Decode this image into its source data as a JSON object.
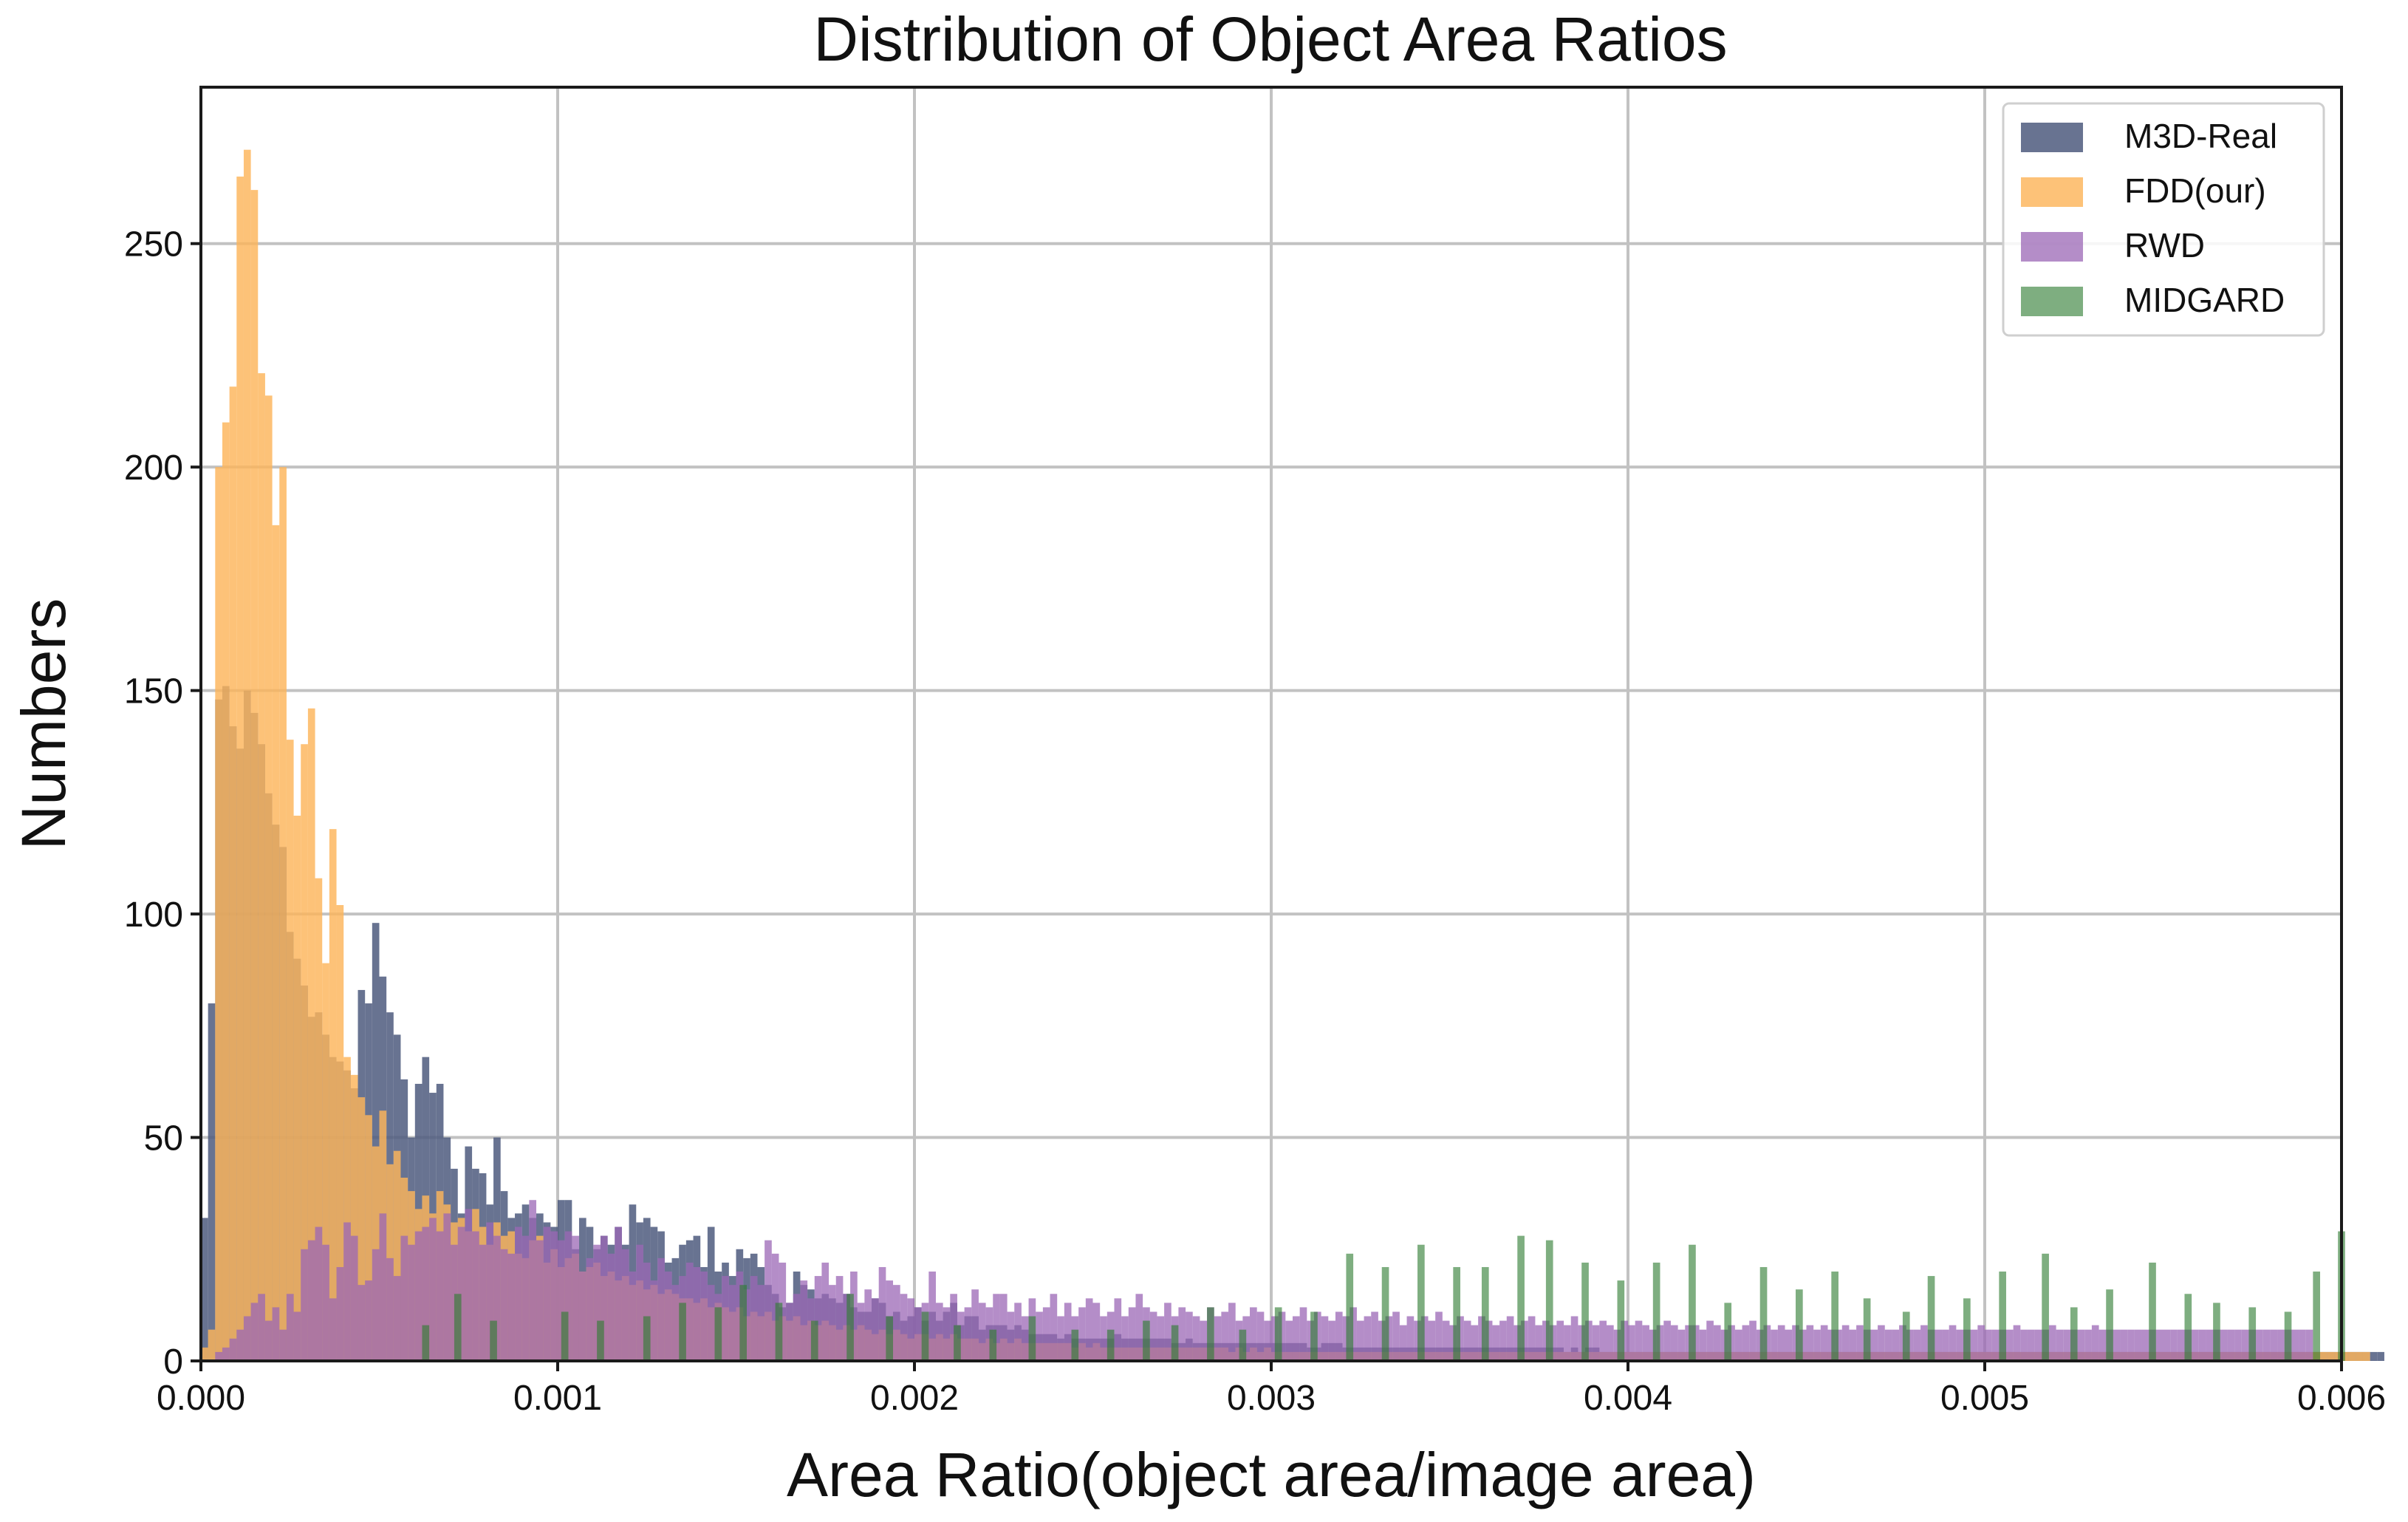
{
  "chart_data": {
    "type": "bar",
    "title": "Distribution of Object Area Ratios",
    "xlabel": "Area Ratio(object area/image area)",
    "ylabel": "Numbers",
    "xlim": [
      0,
      0.006
    ],
    "ylim": [
      0,
      285
    ],
    "xticks": [
      "0.000",
      "0.001",
      "0.002",
      "0.003",
      "0.004",
      "0.005",
      "0.006"
    ],
    "yticks": [
      "0",
      "50",
      "100",
      "150",
      "200",
      "250"
    ],
    "grid": true,
    "legend_position": "top-right",
    "bin_start": 0.0,
    "bin_width": 2e-05,
    "series": [
      {
        "name": "M3D-Real",
        "color": "#4e5a7e",
        "opacity": 0.85,
        "values": [
          32,
          80,
          148,
          151,
          142,
          137,
          150,
          145,
          138,
          127,
          120,
          115,
          96,
          90,
          84,
          77,
          78,
          73,
          68,
          67,
          65,
          61,
          83,
          80,
          98,
          86,
          78,
          73,
          63,
          50,
          62,
          68,
          60,
          62,
          50,
          43,
          33,
          48,
          43,
          42,
          35,
          50,
          38,
          32,
          33,
          35,
          32,
          33,
          31,
          30,
          36,
          36,
          25,
          32,
          30,
          25,
          28,
          26,
          30,
          26,
          35,
          31,
          32,
          30,
          29,
          22,
          23,
          26,
          27,
          28,
          21,
          30,
          20,
          22,
          19,
          25,
          23,
          24,
          21,
          17,
          15,
          12,
          13,
          20,
          17,
          16,
          14,
          15,
          14,
          13,
          15,
          12,
          11,
          11,
          14,
          13,
          10,
          11,
          9,
          10,
          12,
          9,
          11,
          9,
          11,
          13,
          8,
          10,
          10,
          7,
          8,
          8,
          8,
          7,
          8,
          7,
          6,
          6,
          6,
          6,
          5,
          6,
          5,
          5,
          5,
          5,
          5,
          5,
          6,
          5,
          5,
          5,
          5,
          5,
          5,
          5,
          4,
          4,
          5,
          4,
          4,
          4,
          4,
          4,
          4,
          4,
          4,
          4,
          4,
          4,
          4,
          4,
          4,
          4,
          4,
          3,
          3,
          4,
          4,
          4,
          3,
          3,
          3,
          3,
          3,
          3,
          3,
          3,
          3,
          3,
          3,
          3,
          3,
          3,
          3,
          3,
          3,
          3,
          3,
          3,
          3,
          3,
          3,
          3,
          3,
          3,
          3,
          3,
          3,
          3,
          3,
          2,
          3,
          2,
          3,
          3,
          2,
          2,
          2,
          2,
          2,
          2,
          2,
          2,
          2,
          2,
          2,
          2,
          2,
          2,
          2,
          2,
          2,
          2,
          2,
          2,
          2,
          2,
          2,
          2,
          2,
          2,
          2,
          2,
          2,
          2,
          2,
          2,
          2,
          2,
          2,
          2,
          2,
          2,
          2,
          2,
          2,
          2,
          2,
          2,
          2,
          2,
          2,
          2,
          2,
          2,
          2,
          2,
          2,
          2,
          2,
          2,
          2,
          2,
          2,
          2,
          2,
          2,
          2,
          2,
          2,
          2,
          2,
          2,
          2,
          2,
          2,
          2,
          2,
          2,
          2,
          2,
          2,
          2,
          2,
          2,
          2,
          2,
          2,
          2,
          2,
          2,
          2,
          2,
          2,
          2,
          2,
          2,
          2,
          2,
          2,
          2,
          2,
          2,
          2,
          2,
          2,
          2,
          2,
          2,
          2,
          2,
          2,
          2,
          2,
          2
        ]
      },
      {
        "name": "FDD(our)",
        "color": "#fcb55a",
        "opacity": 0.82,
        "values": [
          3,
          7,
          200,
          210,
          218,
          265,
          271,
          262,
          221,
          216,
          187,
          200,
          139,
          122,
          138,
          146,
          108,
          89,
          119,
          102,
          68,
          64,
          59,
          55,
          48,
          56,
          44,
          47,
          41,
          38,
          34,
          37,
          33,
          38,
          35,
          31,
          32,
          29,
          34,
          30,
          26,
          31,
          28,
          29,
          24,
          23,
          27,
          28,
          22,
          25,
          21,
          23,
          24,
          20,
          21,
          22,
          19,
          20,
          18,
          19,
          17,
          18,
          16,
          17,
          15,
          16,
          15,
          14,
          14,
          13,
          14,
          12,
          13,
          12,
          11,
          12,
          10,
          11,
          10,
          11,
          9,
          10,
          9,
          10,
          8,
          9,
          8,
          9,
          8,
          7,
          8,
          7,
          8,
          7,
          6,
          7,
          6,
          7,
          6,
          5,
          6,
          6,
          5,
          6,
          5,
          6,
          5,
          5,
          5,
          4,
          5,
          4,
          5,
          4,
          5,
          4,
          4,
          4,
          4,
          4,
          4,
          4,
          3,
          4,
          3,
          4,
          3,
          3,
          3,
          3,
          3,
          3,
          3,
          3,
          3,
          3,
          3,
          3,
          3,
          3,
          3,
          3,
          3,
          3,
          2,
          3,
          2,
          3,
          2,
          3,
          2,
          2,
          2,
          2,
          2,
          2,
          2,
          2,
          2,
          2,
          2,
          2,
          2,
          2,
          2,
          2,
          2,
          2,
          2,
          2,
          2,
          2,
          2,
          2,
          2,
          2,
          2,
          2,
          2,
          2,
          2,
          2,
          2,
          2,
          2,
          2,
          2,
          2,
          2,
          2,
          2,
          2,
          2,
          2,
          2,
          2,
          2,
          2,
          2,
          2,
          2,
          2,
          2,
          2,
          2,
          2,
          2,
          2,
          2,
          2,
          2,
          2,
          2,
          2,
          2,
          2,
          2,
          2,
          2,
          2,
          2,
          2,
          2,
          2,
          2,
          2,
          2,
          2,
          2,
          2,
          2,
          2,
          2,
          2,
          2,
          2,
          2,
          2,
          2,
          2,
          2,
          2,
          2,
          2,
          2,
          2,
          2,
          2,
          2,
          2,
          2,
          2,
          2,
          2,
          2,
          2,
          2,
          2,
          2,
          2,
          2,
          2,
          2,
          2,
          2,
          2,
          2,
          2,
          2,
          2,
          2,
          2,
          2,
          2,
          2,
          2,
          2,
          2,
          2,
          2,
          2,
          2,
          2,
          2,
          2,
          2,
          2,
          2,
          2,
          2,
          2,
          2,
          2,
          2,
          2,
          2,
          2,
          2,
          2,
          2,
          2,
          2,
          2,
          2
        ]
      },
      {
        "name": "RWD",
        "color": "#9b67b5",
        "opacity": 0.75,
        "values": [
          0,
          0,
          2,
          3,
          5,
          7,
          10,
          13,
          15,
          9,
          12,
          7,
          15,
          11,
          25,
          27,
          30,
          26,
          14,
          21,
          31,
          28,
          17,
          18,
          25,
          33,
          23,
          19,
          28,
          26,
          29,
          30,
          32,
          29,
          33,
          26,
          30,
          34,
          29,
          26,
          31,
          28,
          25,
          24,
          30,
          28,
          36,
          27,
          30,
          29,
          27,
          29,
          28,
          20,
          23,
          26,
          28,
          24,
          30,
          25,
          20,
          26,
          22,
          18,
          23,
          20,
          17,
          19,
          22,
          21,
          20,
          17,
          15,
          19,
          17,
          20,
          16,
          19,
          17,
          27,
          24,
          22,
          13,
          15,
          18,
          14,
          19,
          22,
          17,
          19,
          15,
          20,
          13,
          16,
          14,
          21,
          18,
          17,
          15,
          14,
          12,
          13,
          20,
          13,
          12,
          15,
          11,
          12,
          16,
          13,
          12,
          15,
          15,
          11,
          13,
          10,
          14,
          11,
          12,
          15,
          10,
          13,
          10,
          12,
          14,
          13,
          10,
          11,
          14,
          10,
          12,
          15,
          12,
          11,
          10,
          13,
          10,
          12,
          11,
          10,
          9,
          12,
          10,
          11,
          13,
          9,
          10,
          12,
          11,
          9,
          10,
          11,
          9,
          10,
          12,
          9,
          11,
          10,
          9,
          11,
          10,
          12,
          9,
          10,
          11,
          9,
          10,
          11,
          8,
          10,
          9,
          10,
          9,
          11,
          9,
          8,
          10,
          9,
          8,
          10,
          9,
          8,
          9,
          10,
          8,
          9,
          10,
          8,
          9,
          8,
          9,
          8,
          10,
          8,
          9,
          8,
          9,
          8,
          7,
          9,
          8,
          9,
          8,
          7,
          8,
          9,
          8,
          7,
          8,
          8,
          7,
          9,
          8,
          7,
          8,
          7,
          8,
          9,
          7,
          8,
          7,
          8,
          7,
          8,
          7,
          8,
          7,
          8,
          7,
          7,
          8,
          7,
          8,
          7,
          7,
          8,
          7,
          7,
          8,
          7,
          7,
          8,
          7,
          7,
          7,
          8,
          7,
          7,
          7,
          8,
          7,
          7,
          7,
          7,
          8,
          7,
          7,
          7,
          7,
          8,
          7,
          7,
          7,
          7,
          7,
          8,
          7,
          7,
          7,
          7,
          7,
          7,
          7,
          7,
          7,
          7,
          7,
          7,
          7,
          7,
          7,
          7,
          7,
          7,
          7,
          7,
          7,
          7,
          7,
          7,
          7,
          7,
          7,
          7,
          7,
          7
        ]
      },
      {
        "name": "MIDGARD",
        "color": "#2e7d32",
        "opacity": 0.62,
        "values": [
          0,
          0,
          0,
          0,
          0,
          0,
          0,
          0,
          0,
          0,
          0,
          0,
          0,
          0,
          0,
          0,
          0,
          0,
          0,
          0,
          0,
          0,
          0,
          0,
          0,
          0,
          0,
          0,
          0,
          0,
          0,
          0,
          0,
          0,
          0,
          0,
          0,
          0,
          0,
          0,
          0,
          0,
          0,
          0,
          0,
          0,
          0,
          0,
          0,
          0,
          0,
          0,
          0,
          0,
          0,
          0,
          0,
          0,
          0,
          0,
          0,
          0,
          0,
          0,
          0,
          0,
          0,
          0,
          0,
          0,
          0,
          0,
          0,
          0,
          0,
          0,
          0,
          0,
          0,
          0,
          0,
          0,
          0,
          0,
          0,
          0,
          0,
          0,
          0,
          0,
          0,
          0,
          0,
          0,
          0,
          0,
          0,
          0,
          0,
          0,
          0,
          0,
          0,
          0,
          0,
          0,
          0,
          0,
          0,
          0,
          0,
          0,
          0,
          0,
          0,
          0,
          0,
          0,
          0,
          0,
          0,
          0,
          0,
          0,
          0,
          0,
          0,
          0,
          0,
          0,
          0,
          0,
          0,
          0,
          0,
          0,
          0,
          0,
          0,
          0,
          0,
          0,
          0,
          0,
          0,
          0,
          0,
          0,
          0,
          0,
          0,
          0,
          0,
          0,
          0,
          0,
          0,
          0,
          0,
          0,
          0,
          0,
          0,
          0,
          0,
          0,
          0,
          0,
          0,
          0,
          0,
          0,
          0,
          0,
          0,
          0,
          0,
          0,
          0,
          0,
          0,
          0,
          0,
          0,
          0,
          0,
          0,
          0,
          0,
          0,
          0,
          0,
          0,
          0,
          0,
          0,
          0,
          0,
          0,
          0,
          0,
          0,
          0,
          0,
          0,
          0,
          0,
          0,
          0,
          0,
          0,
          0,
          0,
          0,
          0,
          0,
          0,
          0,
          0,
          0,
          0,
          0,
          0,
          0,
          0,
          0,
          0,
          0,
          0,
          0,
          0,
          0,
          0,
          0,
          0,
          0,
          0,
          0,
          0,
          0,
          0,
          0,
          0,
          0,
          0,
          0,
          0,
          0,
          0,
          0,
          0,
          0,
          0,
          0,
          0,
          0,
          0,
          0,
          0,
          0,
          0,
          0,
          0,
          0,
          0,
          0,
          0,
          0,
          0,
          0,
          0,
          0,
          0,
          0,
          0,
          0,
          0,
          0,
          0,
          0,
          0,
          0,
          0,
          0,
          0,
          0,
          0,
          0,
          0,
          0,
          0,
          0,
          0,
          0,
          0,
          0,
          0,
          0,
          0,
          0,
          0,
          0,
          0,
          0,
          0
        ]
      }
    ]
  },
  "midgard_spikes": [
    [
      0.00063,
      8
    ],
    [
      0.00072,
      15
    ],
    [
      0.00082,
      9
    ],
    [
      0.00102,
      11
    ],
    [
      0.00112,
      9
    ],
    [
      0.00125,
      10
    ],
    [
      0.00135,
      13
    ],
    [
      0.00145,
      12
    ],
    [
      0.00152,
      17
    ],
    [
      0.00162,
      13
    ],
    [
      0.00172,
      9
    ],
    [
      0.00182,
      15
    ],
    [
      0.00193,
      10
    ],
    [
      0.00203,
      11
    ],
    [
      0.00212,
      8
    ],
    [
      0.00222,
      7
    ],
    [
      0.00233,
      10
    ],
    [
      0.00245,
      7
    ],
    [
      0.00255,
      7
    ],
    [
      0.00265,
      9
    ],
    [
      0.00273,
      8
    ],
    [
      0.00283,
      12
    ],
    [
      0.00292,
      7
    ],
    [
      0.00302,
      12
    ],
    [
      0.00312,
      11
    ],
    [
      0.00322,
      24
    ],
    [
      0.00332,
      21
    ],
    [
      0.00342,
      26
    ],
    [
      0.00352,
      21
    ],
    [
      0.0036,
      21
    ],
    [
      0.0037,
      28
    ],
    [
      0.00378,
      27
    ],
    [
      0.00388,
      22
    ],
    [
      0.00398,
      18
    ],
    [
      0.00408,
      22
    ],
    [
      0.00418,
      26
    ],
    [
      0.00428,
      13
    ],
    [
      0.00438,
      21
    ],
    [
      0.00448,
      16
    ],
    [
      0.00458,
      20
    ],
    [
      0.00467,
      14
    ],
    [
      0.00478,
      11
    ],
    [
      0.00485,
      19
    ],
    [
      0.00495,
      14
    ],
    [
      0.00505,
      20
    ],
    [
      0.00517,
      24
    ],
    [
      0.00525,
      12
    ],
    [
      0.00535,
      16
    ],
    [
      0.00547,
      22
    ],
    [
      0.00557,
      15
    ],
    [
      0.00565,
      13
    ],
    [
      0.00575,
      12
    ],
    [
      0.00585,
      11
    ],
    [
      0.00593,
      20
    ],
    [
      0.006,
      29
    ]
  ]
}
